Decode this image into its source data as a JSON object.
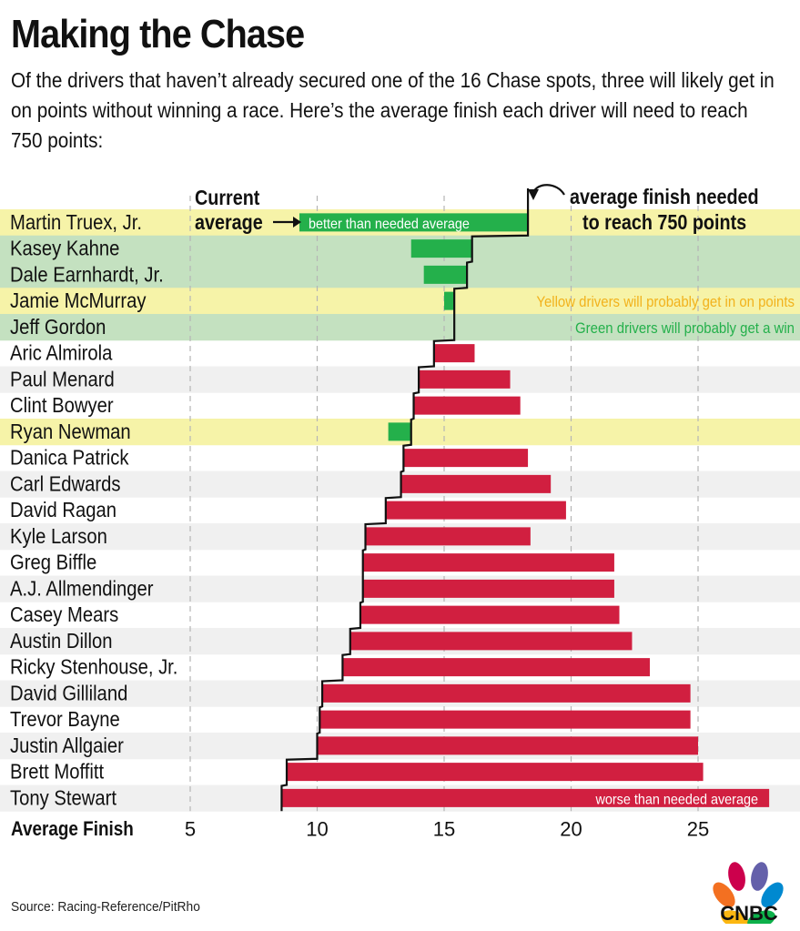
{
  "title": "Making the Chase",
  "subtitle": "Of the drivers that haven’t already secured one of the 16 Chase spots, three will likely get in on points without winning a race. Here’s the average finish each driver will need to reach 750 points:",
  "source": "Source: Racing-Reference/PitRho",
  "logo_text": "CNBC",
  "colors": {
    "worse": "#d11f40",
    "better": "#24b04b",
    "yellow_band": "#f6f3a8",
    "green_band": "#c4e1c0",
    "gray_band": "#f0f0f0",
    "yellow_note": "#f2b21c",
    "green_note": "#24b04b"
  },
  "chart_data": {
    "type": "bar",
    "title": "Making the Chase",
    "xlabel": "Average Finish",
    "xlim": [
      2,
      29
    ],
    "xticks": [
      5,
      10,
      15,
      20,
      25
    ],
    "grid": "vertical dashed",
    "annotations": {
      "current_average": "Current average",
      "needed_label_line1": "average finish needed",
      "needed_label_line2": "to reach 750 points",
      "better_label": "better than needed average",
      "worse_label": "worse than needed average",
      "yellow_note": "Yellow drivers will probably get in on points",
      "green_note": "Green drivers will probably get a win"
    },
    "rows": [
      {
        "driver": "Martin Truex, Jr.",
        "needed": 18.3,
        "current": 9.3,
        "status": "yellow"
      },
      {
        "driver": "Kasey Kahne",
        "needed": 16.1,
        "current": 13.7,
        "status": "green"
      },
      {
        "driver": "Dale Earnhardt, Jr.",
        "needed": 15.9,
        "current": 14.2,
        "status": "green"
      },
      {
        "driver": "Jamie McMurray",
        "needed": 15.4,
        "current": 15.0,
        "status": "yellow"
      },
      {
        "driver": "Jeff Gordon",
        "needed": 15.4,
        "current": 15.4,
        "status": "green"
      },
      {
        "driver": "Aric Almirola",
        "needed": 14.6,
        "current": 16.2,
        "status": "none"
      },
      {
        "driver": "Paul Menard",
        "needed": 14.0,
        "current": 17.6,
        "status": "none"
      },
      {
        "driver": "Clint Bowyer",
        "needed": 13.8,
        "current": 18.0,
        "status": "none"
      },
      {
        "driver": "Ryan Newman",
        "needed": 13.7,
        "current": 12.8,
        "status": "yellow"
      },
      {
        "driver": "Danica Patrick",
        "needed": 13.4,
        "current": 18.3,
        "status": "none"
      },
      {
        "driver": "Carl Edwards",
        "needed": 13.3,
        "current": 19.2,
        "status": "none"
      },
      {
        "driver": "David Ragan",
        "needed": 12.7,
        "current": 19.8,
        "status": "none"
      },
      {
        "driver": "Kyle Larson",
        "needed": 11.9,
        "current": 18.4,
        "status": "none"
      },
      {
        "driver": "Greg Biffle",
        "needed": 11.8,
        "current": 21.7,
        "status": "none"
      },
      {
        "driver": "A.J. Allmendinger",
        "needed": 11.8,
        "current": 21.7,
        "status": "none"
      },
      {
        "driver": "Casey Mears",
        "needed": 11.7,
        "current": 21.9,
        "status": "none"
      },
      {
        "driver": "Austin Dillon",
        "needed": 11.3,
        "current": 22.4,
        "status": "none"
      },
      {
        "driver": "Ricky Stenhouse, Jr.",
        "needed": 11.0,
        "current": 23.1,
        "status": "none"
      },
      {
        "driver": "David Gilliland",
        "needed": 10.2,
        "current": 24.7,
        "status": "none"
      },
      {
        "driver": "Trevor Bayne",
        "needed": 10.1,
        "current": 24.7,
        "status": "none"
      },
      {
        "driver": "Justin Allgaier",
        "needed": 10.0,
        "current": 25.0,
        "status": "none"
      },
      {
        "driver": "Brett Moffitt",
        "needed": 8.8,
        "current": 25.2,
        "status": "none"
      },
      {
        "driver": "Tony Stewart",
        "needed": 8.6,
        "current": 27.8,
        "status": "none"
      }
    ]
  }
}
